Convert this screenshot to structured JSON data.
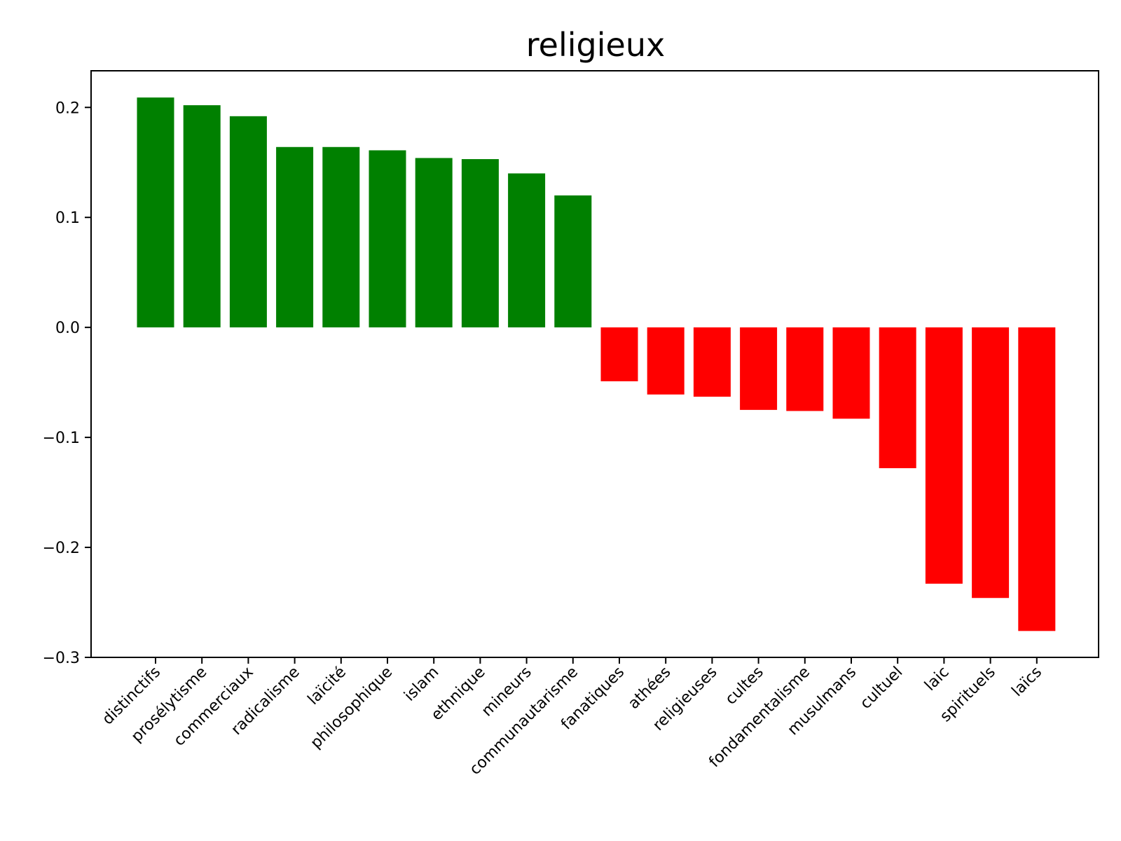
{
  "chart_data": {
    "type": "bar",
    "title": "religieux",
    "xlabel": "",
    "ylabel": "",
    "ylim": [
      -0.3,
      0.2
    ],
    "y_ticks": [
      {
        "value": 0.2,
        "label": "0.2"
      },
      {
        "value": 0.1,
        "label": "0.1"
      },
      {
        "value": 0.0,
        "label": "0.0"
      },
      {
        "value": -0.1,
        "label": "−0.1"
      },
      {
        "value": -0.2,
        "label": "−0.2"
      },
      {
        "value": -0.3,
        "label": "−0.3"
      }
    ],
    "grid": false,
    "legend": "none",
    "colors": {
      "positive": "#008000",
      "negative": "#ff0000"
    },
    "categories": [
      "distinctifs",
      "prosélytisme",
      "commerciaux",
      "radicalisme",
      "laïcité",
      "philosophique",
      "islam",
      "ethnique",
      "mineurs",
      "communautarisme",
      "fanatiques",
      "athées",
      "religieuses",
      "cultes",
      "fondamentalisme",
      "musulmans",
      "cultuel",
      "laic",
      "spirituels",
      "laïcs"
    ],
    "values": [
      0.209,
      0.202,
      0.192,
      0.164,
      0.164,
      0.161,
      0.154,
      0.153,
      0.14,
      0.12,
      -0.049,
      -0.061,
      -0.063,
      -0.075,
      -0.076,
      -0.083,
      -0.128,
      -0.233,
      -0.246,
      -0.276
    ]
  }
}
